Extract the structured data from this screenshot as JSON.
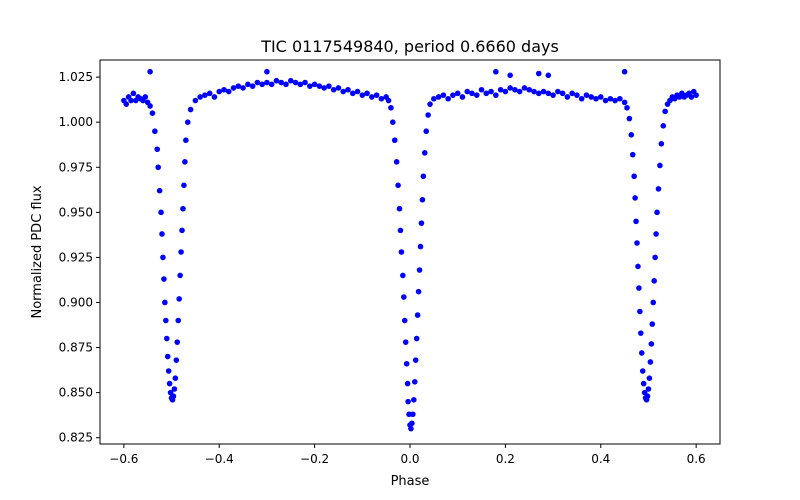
{
  "chart_data": {
    "type": "scatter",
    "title": "TIC 0117549840, period 0.6660 days",
    "xlabel": "Phase",
    "ylabel": "Normalized PDC flux",
    "xlim": [
      -0.65,
      0.65
    ],
    "ylim": [
      0.8215,
      1.0345
    ],
    "xticks": [
      -0.6,
      -0.4,
      -0.2,
      0.0,
      0.2,
      0.4,
      0.6
    ],
    "xtick_labels": [
      "−0.6",
      "−0.4",
      "−0.2",
      "0.0",
      "0.2",
      "0.4",
      "0.6"
    ],
    "yticks": [
      0.825,
      0.85,
      0.875,
      0.9,
      0.925,
      0.95,
      0.975,
      1.0,
      1.025
    ],
    "ytick_labels": [
      "0.825",
      "0.850",
      "0.875",
      "0.900",
      "0.925",
      "0.950",
      "0.975",
      "1.000",
      "1.025"
    ],
    "grid": false,
    "marker_color": "#0000ff",
    "series": [
      {
        "points": [
          [
            -0.6,
            1.012
          ],
          [
            -0.595,
            1.01
          ],
          [
            -0.59,
            1.014
          ],
          [
            -0.585,
            1.012
          ],
          [
            -0.58,
            1.016
          ],
          [
            -0.575,
            1.012
          ],
          [
            -0.57,
            1.014
          ],
          [
            -0.565,
            1.013
          ],
          [
            -0.56,
            1.012
          ],
          [
            -0.555,
            1.014
          ],
          [
            -0.55,
            1.011
          ],
          [
            -0.545,
            1.028
          ],
          [
            -0.545,
            1.009
          ],
          [
            -0.54,
            1.005
          ],
          [
            -0.535,
            0.995
          ],
          [
            -0.53,
            0.985
          ],
          [
            -0.528,
            0.975
          ],
          [
            -0.525,
            0.962
          ],
          [
            -0.522,
            0.95
          ],
          [
            -0.52,
            0.938
          ],
          [
            -0.518,
            0.925
          ],
          [
            -0.516,
            0.913
          ],
          [
            -0.514,
            0.9
          ],
          [
            -0.512,
            0.89
          ],
          [
            -0.51,
            0.88
          ],
          [
            -0.508,
            0.87
          ],
          [
            -0.506,
            0.862
          ],
          [
            -0.504,
            0.855
          ],
          [
            -0.502,
            0.85
          ],
          [
            -0.5,
            0.847
          ],
          [
            -0.498,
            0.846
          ],
          [
            -0.496,
            0.848
          ],
          [
            -0.494,
            0.852
          ],
          [
            -0.492,
            0.858
          ],
          [
            -0.49,
            0.868
          ],
          [
            -0.488,
            0.878
          ],
          [
            -0.486,
            0.89
          ],
          [
            -0.484,
            0.902
          ],
          [
            -0.482,
            0.915
          ],
          [
            -0.48,
            0.928
          ],
          [
            -0.478,
            0.94
          ],
          [
            -0.476,
            0.952
          ],
          [
            -0.474,
            0.965
          ],
          [
            -0.472,
            0.978
          ],
          [
            -0.47,
            0.99
          ],
          [
            -0.466,
            1.0
          ],
          [
            -0.46,
            1.007
          ],
          [
            -0.45,
            1.012
          ],
          [
            -0.44,
            1.014
          ],
          [
            -0.43,
            1.015
          ],
          [
            -0.42,
            1.016
          ],
          [
            -0.41,
            1.014
          ],
          [
            -0.4,
            1.017
          ],
          [
            -0.39,
            1.018
          ],
          [
            -0.38,
            1.017
          ],
          [
            -0.37,
            1.019
          ],
          [
            -0.36,
            1.02
          ],
          [
            -0.35,
            1.019
          ],
          [
            -0.34,
            1.021
          ],
          [
            -0.33,
            1.02
          ],
          [
            -0.32,
            1.022
          ],
          [
            -0.31,
            1.021
          ],
          [
            -0.3,
            1.028
          ],
          [
            -0.3,
            1.022
          ],
          [
            -0.29,
            1.021
          ],
          [
            -0.28,
            1.023
          ],
          [
            -0.27,
            1.022
          ],
          [
            -0.26,
            1.021
          ],
          [
            -0.25,
            1.023
          ],
          [
            -0.24,
            1.022
          ],
          [
            -0.23,
            1.021
          ],
          [
            -0.22,
            1.022
          ],
          [
            -0.21,
            1.02
          ],
          [
            -0.2,
            1.021
          ],
          [
            -0.19,
            1.02
          ],
          [
            -0.18,
            1.019
          ],
          [
            -0.17,
            1.02
          ],
          [
            -0.16,
            1.018
          ],
          [
            -0.15,
            1.019
          ],
          [
            -0.14,
            1.017
          ],
          [
            -0.13,
            1.018
          ],
          [
            -0.12,
            1.016
          ],
          [
            -0.11,
            1.017
          ],
          [
            -0.1,
            1.015
          ],
          [
            -0.09,
            1.016
          ],
          [
            -0.08,
            1.014
          ],
          [
            -0.07,
            1.015
          ],
          [
            -0.06,
            1.013
          ],
          [
            -0.05,
            1.014
          ],
          [
            -0.045,
            1.012
          ],
          [
            -0.04,
            1.008
          ],
          [
            -0.036,
            1.0
          ],
          [
            -0.032,
            0.99
          ],
          [
            -0.028,
            0.978
          ],
          [
            -0.025,
            0.965
          ],
          [
            -0.022,
            0.952
          ],
          [
            -0.02,
            0.94
          ],
          [
            -0.018,
            0.928
          ],
          [
            -0.015,
            0.915
          ],
          [
            -0.013,
            0.903
          ],
          [
            -0.011,
            0.89
          ],
          [
            -0.009,
            0.878
          ],
          [
            -0.007,
            0.866
          ],
          [
            -0.005,
            0.855
          ],
          [
            -0.004,
            0.845
          ],
          [
            -0.002,
            0.838
          ],
          [
            0.0,
            0.832
          ],
          [
            0.002,
            0.83
          ],
          [
            0.004,
            0.833
          ],
          [
            0.006,
            0.838
          ],
          [
            0.008,
            0.846
          ],
          [
            0.01,
            0.856
          ],
          [
            0.012,
            0.868
          ],
          [
            0.014,
            0.88
          ],
          [
            0.016,
            0.893
          ],
          [
            0.018,
            0.906
          ],
          [
            0.02,
            0.918
          ],
          [
            0.022,
            0.931
          ],
          [
            0.024,
            0.944
          ],
          [
            0.026,
            0.957
          ],
          [
            0.028,
            0.97
          ],
          [
            0.031,
            0.983
          ],
          [
            0.034,
            0.995
          ],
          [
            0.038,
            1.004
          ],
          [
            0.042,
            1.01
          ],
          [
            0.05,
            1.013
          ],
          [
            0.06,
            1.014
          ],
          [
            0.07,
            1.015
          ],
          [
            0.08,
            1.013
          ],
          [
            0.09,
            1.015
          ],
          [
            0.1,
            1.016
          ],
          [
            0.11,
            1.014
          ],
          [
            0.12,
            1.017
          ],
          [
            0.13,
            1.016
          ],
          [
            0.14,
            1.015
          ],
          [
            0.15,
            1.018
          ],
          [
            0.16,
            1.016
          ],
          [
            0.17,
            1.017
          ],
          [
            0.18,
            1.028
          ],
          [
            0.18,
            1.015
          ],
          [
            0.19,
            1.018
          ],
          [
            0.2,
            1.017
          ],
          [
            0.21,
            1.026
          ],
          [
            0.21,
            1.019
          ],
          [
            0.22,
            1.018
          ],
          [
            0.23,
            1.017
          ],
          [
            0.24,
            1.019
          ],
          [
            0.25,
            1.018
          ],
          [
            0.26,
            1.017
          ],
          [
            0.27,
            1.027
          ],
          [
            0.27,
            1.016
          ],
          [
            0.28,
            1.017
          ],
          [
            0.29,
            1.026
          ],
          [
            0.29,
            1.016
          ],
          [
            0.3,
            1.015
          ],
          [
            0.31,
            1.017
          ],
          [
            0.32,
            1.016
          ],
          [
            0.33,
            1.014
          ],
          [
            0.34,
            1.016
          ],
          [
            0.35,
            1.015
          ],
          [
            0.36,
            1.013
          ],
          [
            0.37,
            1.015
          ],
          [
            0.38,
            1.014
          ],
          [
            0.39,
            1.013
          ],
          [
            0.4,
            1.014
          ],
          [
            0.41,
            1.012
          ],
          [
            0.42,
            1.013
          ],
          [
            0.43,
            1.012
          ],
          [
            0.44,
            1.013
          ],
          [
            0.45,
            1.028
          ],
          [
            0.45,
            1.011
          ],
          [
            0.455,
            1.008
          ],
          [
            0.46,
            1.002
          ],
          [
            0.464,
            0.993
          ],
          [
            0.467,
            0.982
          ],
          [
            0.47,
            0.97
          ],
          [
            0.472,
            0.958
          ],
          [
            0.474,
            0.945
          ],
          [
            0.476,
            0.933
          ],
          [
            0.478,
            0.92
          ],
          [
            0.48,
            0.908
          ],
          [
            0.482,
            0.895
          ],
          [
            0.484,
            0.883
          ],
          [
            0.486,
            0.872
          ],
          [
            0.488,
            0.862
          ],
          [
            0.49,
            0.855
          ],
          [
            0.492,
            0.85
          ],
          [
            0.494,
            0.847
          ],
          [
            0.496,
            0.846
          ],
          [
            0.498,
            0.848
          ],
          [
            0.5,
            0.852
          ],
          [
            0.502,
            0.858
          ],
          [
            0.504,
            0.867
          ],
          [
            0.506,
            0.877
          ],
          [
            0.508,
            0.888
          ],
          [
            0.51,
            0.9
          ],
          [
            0.512,
            0.912
          ],
          [
            0.514,
            0.925
          ],
          [
            0.516,
            0.938
          ],
          [
            0.518,
            0.95
          ],
          [
            0.521,
            0.963
          ],
          [
            0.524,
            0.976
          ],
          [
            0.527,
            0.988
          ],
          [
            0.531,
            0.998
          ],
          [
            0.535,
            1.006
          ],
          [
            0.54,
            1.01
          ],
          [
            0.545,
            1.012
          ],
          [
            0.55,
            1.014
          ],
          [
            0.555,
            1.013
          ],
          [
            0.56,
            1.015
          ],
          [
            0.565,
            1.014
          ],
          [
            0.57,
            1.016
          ],
          [
            0.575,
            1.014
          ],
          [
            0.58,
            1.015
          ],
          [
            0.585,
            1.016
          ],
          [
            0.59,
            1.014
          ],
          [
            0.595,
            1.017
          ],
          [
            0.6,
            1.015
          ]
        ]
      }
    ]
  }
}
